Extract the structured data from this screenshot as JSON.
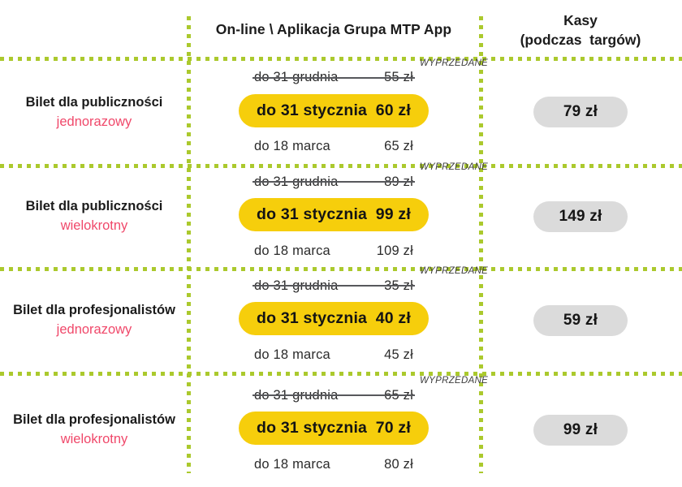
{
  "header": {
    "online_label": "On-line \\ Aplikacja Grupa MTP App",
    "kasy_line1": "Kasy",
    "kasy_line2": "(podczas  targów)"
  },
  "labels": {
    "sold_out": "WYPRZEDANE"
  },
  "rows": [
    {
      "title": "Bilet dla publiczności",
      "subtitle": "jednorazowy",
      "tier1_date": "do 31 grudnia",
      "tier1_price": "55 zł",
      "tier2_date": "do 31 stycznia",
      "tier2_price": "60 zł",
      "tier3_date": "do 18 marca",
      "tier3_price": "65 zł",
      "kasy_price": "79 zł"
    },
    {
      "title": "Bilet dla publiczności",
      "subtitle": "wielokrotny",
      "tier1_date": "do 31 grudnia",
      "tier1_price": "89 zł",
      "tier2_date": "do 31 stycznia",
      "tier2_price": "99 zł",
      "tier3_date": "do 18 marca",
      "tier3_price": "109 zł",
      "kasy_price": "149 zł"
    },
    {
      "title": "Bilet dla profesjonalistów",
      "subtitle": "jednorazowy",
      "tier1_date": "do 31 grudnia",
      "tier1_price": "35 zł",
      "tier2_date": "do 31 stycznia",
      "tier2_price": "40 zł",
      "tier3_date": "do 18 marca",
      "tier3_price": "45 zł",
      "kasy_price": "59 zł"
    },
    {
      "title": "Bilet dla profesjonalistów",
      "subtitle": "wielokrotny",
      "tier1_date": "do 31 grudnia",
      "tier1_price": "65 zł",
      "tier2_date": "do 31 stycznia",
      "tier2_price": "70 zł",
      "tier3_date": "do 18 marca",
      "tier3_price": "80 zł",
      "kasy_price": "99 zł"
    }
  ],
  "colors": {
    "highlight_yellow": "#F6CE0C",
    "kasy_pill_gray": "#DBDBDB",
    "dotted_line_green": "#ABC92D",
    "subtitle_pink": "#F0486A",
    "text_dark": "#1C1C1C"
  },
  "chart_data": {
    "type": "table",
    "title": "",
    "columns": [
      "",
      "On-line \\ Aplikacja Grupa MTP App",
      "Kasy (podczas  targów)"
    ],
    "rows": [
      {
        "ticket": "Bilet dla publiczności",
        "variant": "jednorazowy",
        "online_tiers": [
          {
            "period": "do 31 grudnia",
            "price_zl": 55,
            "sold_out": true
          },
          {
            "period": "do 31 stycznia",
            "price_zl": 60,
            "highlighted": true
          },
          {
            "period": "do 18 marca",
            "price_zl": 65
          }
        ],
        "kasy_price_zl": 79
      },
      {
        "ticket": "Bilet dla publiczności",
        "variant": "wielokrotny",
        "online_tiers": [
          {
            "period": "do 31 grudnia",
            "price_zl": 89,
            "sold_out": true
          },
          {
            "period": "do 31 stycznia",
            "price_zl": 99,
            "highlighted": true
          },
          {
            "period": "do 18 marca",
            "price_zl": 109
          }
        ],
        "kasy_price_zl": 149
      },
      {
        "ticket": "Bilet dla profesjonalistów",
        "variant": "jednorazowy",
        "online_tiers": [
          {
            "period": "do 31 grudnia",
            "price_zl": 35,
            "sold_out": true
          },
          {
            "period": "do 31 stycznia",
            "price_zl": 40,
            "highlighted": true
          },
          {
            "period": "do 18 marca",
            "price_zl": 45
          }
        ],
        "kasy_price_zl": 59
      },
      {
        "ticket": "Bilet dla profesjonalistów",
        "variant": "wielokrotny",
        "online_tiers": [
          {
            "period": "do 31 grudnia",
            "price_zl": 65,
            "sold_out": true
          },
          {
            "period": "do 31 stycznia",
            "price_zl": 70,
            "highlighted": true
          },
          {
            "period": "do 18 marca",
            "price_zl": 80
          }
        ],
        "kasy_price_zl": 99
      }
    ]
  }
}
